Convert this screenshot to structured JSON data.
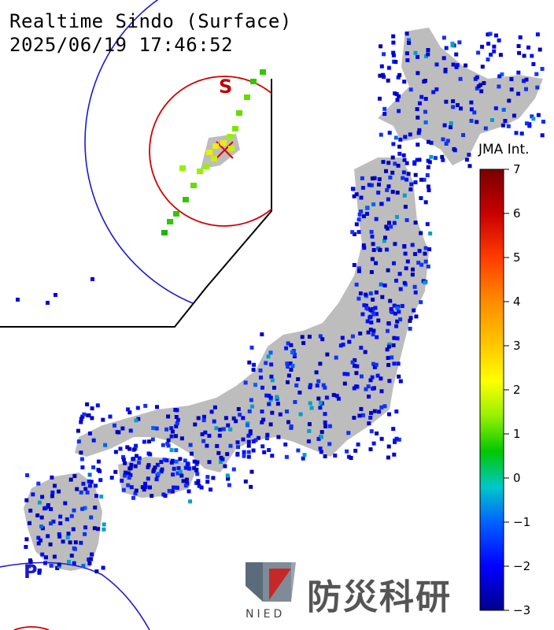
{
  "header": {
    "title": "Realtime Sindo (Surface)",
    "datetime": "2025/06/19 17:46:52"
  },
  "legend": {
    "title": "JMA Int.",
    "ticks": [
      "7",
      "6",
      "5",
      "4",
      "3",
      "2",
      "1",
      "0",
      "−1",
      "−2",
      "−3"
    ],
    "colors": [
      "#00008c",
      "#0000ff",
      "#0062ff",
      "#00c8c8",
      "#00c800",
      "#96f000",
      "#ffff00",
      "#ffc800",
      "#ff8c00",
      "#ff3c00",
      "#c80000",
      "#780000"
    ]
  },
  "markers": {
    "s_wave_label": "S",
    "p_wave_label": "P",
    "s_wave_color": "#d00000",
    "p_wave_color": "#1a1ad0"
  },
  "logo": {
    "name": "防災科研",
    "abbr": "NIED"
  }
}
